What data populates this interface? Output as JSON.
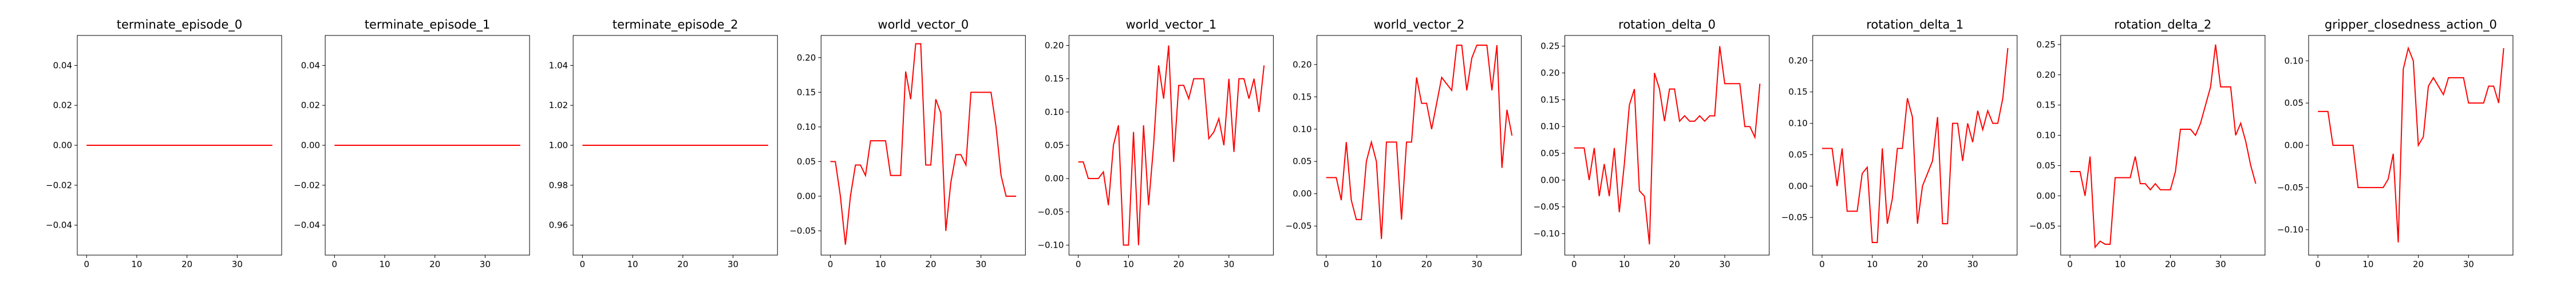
{
  "chart_data": [
    {
      "type": "line",
      "title": "terminate_episode_0",
      "x": [
        0,
        1,
        2,
        3,
        4,
        5,
        6,
        7,
        8,
        9,
        10,
        11,
        12,
        13,
        14,
        15,
        16,
        17,
        18,
        19,
        20,
        21,
        22,
        23,
        24,
        25,
        26,
        27,
        28,
        29,
        30,
        31,
        32,
        33,
        34,
        35,
        36,
        37
      ],
      "values": [
        0,
        0,
        0,
        0,
        0,
        0,
        0,
        0,
        0,
        0,
        0,
        0,
        0,
        0,
        0,
        0,
        0,
        0,
        0,
        0,
        0,
        0,
        0,
        0,
        0,
        0,
        0,
        0,
        0,
        0,
        0,
        0,
        0,
        0,
        0,
        0,
        0,
        0
      ],
      "xlim": [
        -1.85,
        38.85
      ],
      "ylim": [
        -0.055,
        0.055
      ],
      "xticks": [
        0,
        10,
        20,
        30
      ],
      "yticks": [
        -0.04,
        -0.02,
        0.0,
        0.02,
        0.04
      ],
      "ytick_labels": [
        "−0.04",
        "−0.02",
        "0.00",
        "0.02",
        "0.04"
      ],
      "color": "#ff0000"
    },
    {
      "type": "line",
      "title": "terminate_episode_1",
      "x": [
        0,
        1,
        2,
        3,
        4,
        5,
        6,
        7,
        8,
        9,
        10,
        11,
        12,
        13,
        14,
        15,
        16,
        17,
        18,
        19,
        20,
        21,
        22,
        23,
        24,
        25,
        26,
        27,
        28,
        29,
        30,
        31,
        32,
        33,
        34,
        35,
        36,
        37
      ],
      "values": [
        0,
        0,
        0,
        0,
        0,
        0,
        0,
        0,
        0,
        0,
        0,
        0,
        0,
        0,
        0,
        0,
        0,
        0,
        0,
        0,
        0,
        0,
        0,
        0,
        0,
        0,
        0,
        0,
        0,
        0,
        0,
        0,
        0,
        0,
        0,
        0,
        0,
        0
      ],
      "xlim": [
        -1.85,
        38.85
      ],
      "ylim": [
        -0.055,
        0.055
      ],
      "xticks": [
        0,
        10,
        20,
        30
      ],
      "yticks": [
        -0.04,
        -0.02,
        0.0,
        0.02,
        0.04
      ],
      "ytick_labels": [
        "−0.04",
        "−0.02",
        "0.00",
        "0.02",
        "0.04"
      ],
      "color": "#ff0000"
    },
    {
      "type": "line",
      "title": "terminate_episode_2",
      "x": [
        0,
        1,
        2,
        3,
        4,
        5,
        6,
        7,
        8,
        9,
        10,
        11,
        12,
        13,
        14,
        15,
        16,
        17,
        18,
        19,
        20,
        21,
        22,
        23,
        24,
        25,
        26,
        27,
        28,
        29,
        30,
        31,
        32,
        33,
        34,
        35,
        36,
        37
      ],
      "values": [
        1,
        1,
        1,
        1,
        1,
        1,
        1,
        1,
        1,
        1,
        1,
        1,
        1,
        1,
        1,
        1,
        1,
        1,
        1,
        1,
        1,
        1,
        1,
        1,
        1,
        1,
        1,
        1,
        1,
        1,
        1,
        1,
        1,
        1,
        1,
        1,
        1,
        1
      ],
      "xlim": [
        -1.85,
        38.85
      ],
      "ylim": [
        0.945,
        1.055
      ],
      "xticks": [
        0,
        10,
        20,
        30
      ],
      "yticks": [
        0.96,
        0.98,
        1.0,
        1.02,
        1.04
      ],
      "ytick_labels": [
        "0.96",
        "0.98",
        "1.00",
        "1.02",
        "1.04"
      ],
      "color": "#ff0000"
    },
    {
      "type": "line",
      "title": "world_vector_0",
      "x": [
        0,
        1,
        2,
        3,
        4,
        5,
        6,
        7,
        8,
        9,
        10,
        11,
        12,
        13,
        14,
        15,
        16,
        17,
        18,
        19,
        20,
        21,
        22,
        23,
        24,
        25,
        26,
        27,
        28,
        29,
        30,
        31,
        32,
        33,
        34,
        35,
        36,
        37
      ],
      "values": [
        0.05,
        0.05,
        0.0,
        -0.07,
        0.0,
        0.045,
        0.045,
        0.03,
        0.08,
        0.08,
        0.08,
        0.08,
        0.03,
        0.03,
        0.03,
        0.18,
        0.14,
        0.22,
        0.22,
        0.045,
        0.045,
        0.14,
        0.12,
        -0.05,
        0.02,
        0.06,
        0.06,
        0.045,
        0.15,
        0.15,
        0.15,
        0.15,
        0.15,
        0.1,
        0.03,
        0,
        0,
        0
      ],
      "n_points": 38,
      "xlim": [
        -1.85,
        38.85
      ],
      "ylim": [
        -0.085,
        0.232
      ],
      "xticks": [
        0,
        10,
        20,
        30
      ],
      "yticks": [
        -0.05,
        0.0,
        0.05,
        0.1,
        0.15,
        0.2
      ],
      "ytick_labels": [
        "−0.05",
        "0.00",
        "0.05",
        "0.10",
        "0.15",
        "0.20"
      ],
      "color": "#ff0000"
    },
    {
      "type": "line",
      "title": "world_vector_1",
      "x": [
        0,
        1,
        2,
        3,
        4,
        5,
        6,
        7,
        8,
        9,
        10,
        11,
        12,
        13,
        14,
        15,
        16,
        17,
        18,
        19,
        20,
        21,
        22,
        23,
        24,
        25,
        26,
        27,
        28,
        29,
        30,
        31,
        32,
        33,
        34,
        35,
        36,
        37
      ],
      "values": [
        0.025,
        0.025,
        0.0,
        0.0,
        0.0,
        0.01,
        -0.04,
        0.05,
        0.08,
        -0.1,
        -0.1,
        0.07,
        -0.1,
        0.08,
        -0.04,
        0.05,
        0.17,
        0.12,
        0.2,
        0.025,
        0.14,
        0.14,
        0.12,
        0.15,
        0.15,
        0.15,
        0.06,
        0.07,
        0.09,
        0.05,
        0.15,
        0.04,
        0.15,
        0.15,
        0.12,
        0.15,
        0.1,
        0.17
      ],
      "xlim": [
        -1.85,
        38.85
      ],
      "ylim": [
        -0.115,
        0.215
      ],
      "xticks": [
        0,
        10,
        20,
        30
      ],
      "yticks": [
        -0.1,
        -0.05,
        0.0,
        0.05,
        0.1,
        0.15,
        0.2
      ],
      "ytick_labels": [
        "−0.10",
        "−0.05",
        "0.00",
        "0.05",
        "0.10",
        "0.15",
        "0.20"
      ],
      "color": "#ff0000"
    },
    {
      "type": "line",
      "title": "world_vector_2",
      "x": [
        0,
        1,
        2,
        3,
        4,
        5,
        6,
        7,
        8,
        9,
        10,
        11,
        12,
        13,
        14,
        15,
        16,
        17,
        18,
        19,
        20,
        21,
        22,
        23,
        24,
        25,
        26,
        27,
        28,
        29,
        30,
        31,
        32,
        33,
        34,
        35,
        36,
        37
      ],
      "values": [
        0.025,
        0.025,
        0.025,
        -0.01,
        0.08,
        -0.01,
        -0.04,
        -0.04,
        0.05,
        0.08,
        0.05,
        -0.07,
        0.08,
        0.08,
        0.08,
        -0.04,
        0.08,
        0.08,
        0.18,
        0.14,
        0.14,
        0.1,
        0.14,
        0.18,
        0.17,
        0.16,
        0.23,
        0.23,
        0.16,
        0.21,
        0.23,
        0.23,
        0.23,
        0.16,
        0.23,
        0.04,
        0.13,
        0.09
      ],
      "xlim": [
        -1.85,
        38.85
      ],
      "ylim": [
        -0.095,
        0.245
      ],
      "xticks": [
        0,
        10,
        20,
        30
      ],
      "yticks": [
        -0.05,
        0.0,
        0.05,
        0.1,
        0.15,
        0.2
      ],
      "ytick_labels": [
        "−0.05",
        "0.00",
        "0.05",
        "0.10",
        "0.15",
        "0.20"
      ],
      "color": "#ff0000"
    },
    {
      "type": "line",
      "title": "rotation_delta_0",
      "x": [
        0,
        1,
        2,
        3,
        4,
        5,
        6,
        7,
        8,
        9,
        10,
        11,
        12,
        13,
        14,
        15,
        16,
        17,
        18,
        19,
        20,
        21,
        22,
        23,
        24,
        25,
        26,
        27,
        28,
        29,
        30,
        31,
        32,
        33,
        34,
        35,
        36,
        37
      ],
      "values": [
        0.06,
        0.06,
        0.06,
        0.0,
        0.06,
        -0.03,
        0.03,
        -0.03,
        0.06,
        -0.06,
        0.03,
        0.14,
        0.17,
        -0.02,
        -0.03,
        -0.12,
        0.2,
        0.17,
        0.11,
        0.17,
        0.17,
        0.11,
        0.12,
        0.11,
        0.11,
        0.12,
        0.11,
        0.12,
        0.12,
        0.25,
        0.18,
        0.18,
        0.18,
        0.18,
        0.1,
        0.1,
        0.08,
        0.18
      ],
      "xlim": [
        -1.85,
        38.85
      ],
      "ylim": [
        -0.14,
        0.27
      ],
      "xticks": [
        0,
        10,
        20,
        30
      ],
      "yticks": [
        -0.1,
        -0.05,
        0.0,
        0.05,
        0.1,
        0.15,
        0.2,
        0.25
      ],
      "ytick_labels": [
        "−0.10",
        "−0.05",
        "0.00",
        "0.05",
        "0.10",
        "0.15",
        "0.20",
        "0.25"
      ],
      "color": "#ff0000"
    },
    {
      "type": "line",
      "title": "rotation_delta_1",
      "x": [
        0,
        1,
        2,
        3,
        4,
        5,
        6,
        7,
        8,
        9,
        10,
        11,
        12,
        13,
        14,
        15,
        16,
        17,
        18,
        19,
        20,
        21,
        22,
        23,
        24,
        25,
        26,
        27,
        28,
        29,
        30,
        31,
        32,
        33,
        34,
        35,
        36,
        37
      ],
      "values": [
        0.06,
        0.06,
        0.06,
        0.0,
        0.06,
        -0.04,
        -0.04,
        -0.04,
        0.02,
        0.03,
        -0.09,
        -0.09,
        0.06,
        -0.06,
        -0.02,
        0.06,
        0.06,
        0.14,
        0.11,
        -0.06,
        0.0,
        0.02,
        0.04,
        0.11,
        -0.06,
        -0.06,
        0.1,
        0.1,
        0.04,
        0.1,
        0.07,
        0.12,
        0.09,
        0.12,
        0.1,
        0.1,
        0.14,
        0.22
      ],
      "xlim": [
        -1.85,
        38.85
      ],
      "ylim": [
        -0.11,
        0.24
      ],
      "xticks": [
        0,
        10,
        20,
        30
      ],
      "yticks": [
        -0.05,
        0.0,
        0.05,
        0.1,
        0.15,
        0.2
      ],
      "ytick_labels": [
        "−0.05",
        "0.00",
        "0.05",
        "0.10",
        "0.15",
        "0.20"
      ],
      "color": "#ff0000"
    },
    {
      "type": "line",
      "title": "rotation_delta_2",
      "x": [
        0,
        1,
        2,
        3,
        4,
        5,
        6,
        7,
        8,
        9,
        10,
        11,
        12,
        13,
        14,
        15,
        16,
        17,
        18,
        19,
        20,
        21,
        22,
        23,
        24,
        25,
        26,
        27,
        28,
        29,
        30,
        31,
        32,
        33,
        34,
        35,
        36,
        37
      ],
      "values": [
        0.04,
        0.04,
        0.04,
        0.0,
        0.065,
        -0.085,
        -0.075,
        -0.08,
        -0.08,
        0.03,
        0.03,
        0.03,
        0.03,
        0.065,
        0.02,
        0.02,
        0.01,
        0.02,
        0.01,
        0.01,
        0.01,
        0.04,
        0.11,
        0.11,
        0.11,
        0.1,
        0.12,
        0.15,
        0.18,
        0.25,
        0.18,
        0.18,
        0.18,
        0.1,
        0.12,
        0.09,
        0.05,
        0.02
      ],
      "xlim": [
        -1.85,
        38.85
      ],
      "ylim": [
        -0.098,
        0.265
      ],
      "xticks": [
        0,
        10,
        20,
        30
      ],
      "yticks": [
        -0.05,
        0.0,
        0.05,
        0.1,
        0.15,
        0.2,
        0.25
      ],
      "ytick_labels": [
        "−0.05",
        "0.00",
        "0.05",
        "0.10",
        "0.15",
        "0.20",
        "0.25"
      ],
      "color": "#ff0000"
    },
    {
      "type": "line",
      "title": "gripper_closedness_action_0",
      "x": [
        0,
        1,
        2,
        3,
        4,
        5,
        6,
        7,
        8,
        9,
        10,
        11,
        12,
        13,
        14,
        15,
        16,
        17,
        18,
        19,
        20,
        21,
        22,
        23,
        24,
        25,
        26,
        27,
        28,
        29,
        30,
        31,
        32,
        33,
        34,
        35,
        36,
        37
      ],
      "values": [
        0.04,
        0.04,
        0.04,
        0.0,
        0.0,
        0.0,
        0.0,
        0.0,
        -0.05,
        -0.05,
        -0.05,
        -0.05,
        -0.05,
        -0.05,
        -0.04,
        -0.01,
        -0.115,
        0.09,
        0.115,
        0.1,
        0.0,
        0.01,
        0.07,
        0.08,
        0.07,
        0.06,
        0.08,
        0.08,
        0.08,
        0.08,
        0.05,
        0.05,
        0.05,
        0.05,
        0.07,
        0.07,
        0.05,
        0.115
      ],
      "xlim": [
        -1.85,
        38.85
      ],
      "ylim": [
        -0.13,
        0.13
      ],
      "xticks": [
        0,
        10,
        20,
        30
      ],
      "yticks": [
        -0.1,
        -0.05,
        0.0,
        0.05,
        0.1
      ],
      "ytick_labels": [
        "−0.10",
        "−0.05",
        "0.00",
        "0.05",
        "0.10"
      ],
      "color": "#ff0000"
    }
  ]
}
